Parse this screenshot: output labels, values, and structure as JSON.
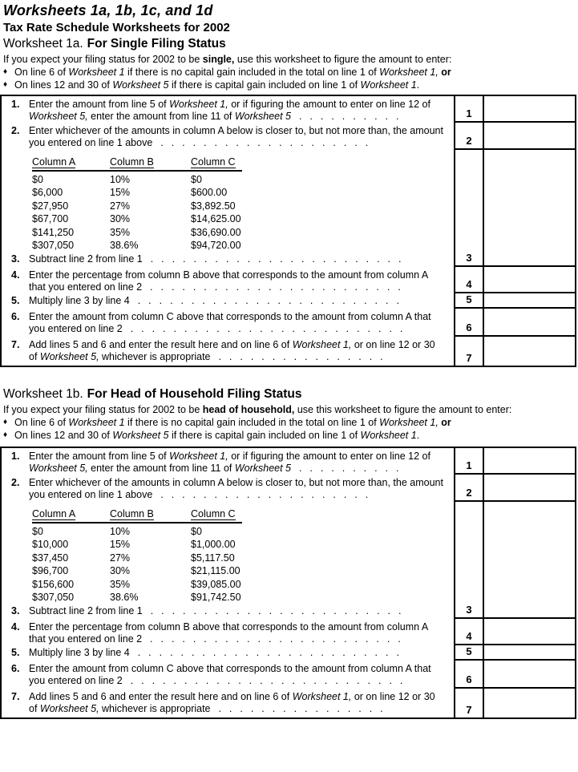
{
  "page": {
    "title": "Worksheets 1a, 1b, 1c, and 1d",
    "subtitle": "Tax Rate Schedule Worksheets for 2002"
  },
  "shared": {
    "bullet_glyph": "♦"
  },
  "worksheets": [
    {
      "label": "Worksheet 1a.",
      "title": "For Single Filing Status",
      "intro": [
        {
          "t": "If you expect your filing status for 2002 to be "
        },
        {
          "t": "single,",
          "b": true
        },
        {
          "t": " use this worksheet to figure the amount to enter:"
        }
      ],
      "bullets": [
        [
          {
            "t": "On line 6 of "
          },
          {
            "t": "Worksheet 1",
            "i": true
          },
          {
            "t": " if there is no capital gain included in the total on line 1 of "
          },
          {
            "t": "Worksheet 1,",
            "i": true
          },
          {
            "t": " "
          },
          {
            "t": "or",
            "b": true
          }
        ],
        [
          {
            "t": "On lines 12 and 30 of "
          },
          {
            "t": "Worksheet 5",
            "i": true
          },
          {
            "t": " if there is capital gain included on line 1 of "
          },
          {
            "t": "Worksheet 1",
            "i": true
          },
          {
            "t": "."
          }
        ]
      ],
      "rate_table": {
        "headers": [
          "Column A",
          "Column B",
          "Column C"
        ],
        "rows": [
          [
            "$0",
            "10%",
            "$0"
          ],
          [
            "$6,000",
            "15%",
            "$600.00"
          ],
          [
            "$27,950",
            "27%",
            "$3,892.50"
          ],
          [
            "$67,700",
            "30%",
            "$14,625.00"
          ],
          [
            "$141,250",
            "35%",
            "$36,690.00"
          ],
          [
            "$307,050",
            "38.6%",
            "$94,720.00"
          ]
        ]
      },
      "lines": [
        {
          "num": "1.",
          "box_num": "1",
          "entry_value": "",
          "runs": [
            {
              "t": "Enter the amount from line 5 of "
            },
            {
              "t": "Worksheet 1,",
              "i": true
            },
            {
              "t": " or if figuring the amount to enter on line 12 of "
            },
            {
              "t": "Worksheet 5,",
              "i": true
            },
            {
              "t": " enter the amount from line 11 of "
            },
            {
              "t": "Worksheet 5",
              "i": true
            }
          ],
          "leader": " . . . . . . . . . ."
        },
        {
          "num": "2.",
          "box_num": "2",
          "entry_value": "",
          "runs": [
            {
              "t": "Enter whichever of the amounts in column A below is closer to, but not more than, the amount you entered on line 1 above"
            }
          ],
          "leader": " . . . . . . . . . . . . . . . . . . . ."
        },
        {
          "num": "3.",
          "box_num": "3",
          "entry_value": "",
          "runs": [
            {
              "t": "Subtract line 2 from line 1"
            }
          ],
          "leader": " . . . . . . . . . . . . . . . . . . . . . . . ."
        },
        {
          "num": "4.",
          "box_num": "4",
          "entry_value": "",
          "runs": [
            {
              "t": "Enter the percentage from column B above that corresponds to the amount from column A that you entered on line 2"
            }
          ],
          "leader": " . . . . . . . . . . . . . . . . . . . . . . . ."
        },
        {
          "num": "5.",
          "box_num": "5",
          "entry_value": "",
          "runs": [
            {
              "t": "Multiply line 3 by line 4"
            }
          ],
          "leader": " . . . . . . . . . . . . . . . . . . . . . . . . ."
        },
        {
          "num": "6.",
          "box_num": "6",
          "entry_value": "",
          "runs": [
            {
              "t": "Enter the amount from column C above that corresponds to the amount from column A that you entered on line 2"
            }
          ],
          "leader": " . . . . . . . . . . . . . . . . . . . . . . . . . ."
        },
        {
          "num": "7.",
          "box_num": "7",
          "entry_value": "",
          "runs": [
            {
              "t": "Add lines 5 and 6 and enter the result here and on line 6 of "
            },
            {
              "t": "Worksheet 1,",
              "i": true
            },
            {
              "t": " or on line 12 or 30 of "
            },
            {
              "t": "Worksheet 5,",
              "i": true
            },
            {
              "t": " whichever is appropriate"
            }
          ],
          "leader": " . . . . . . . . . . . . . . . ."
        }
      ]
    },
    {
      "label": "Worksheet 1b.",
      "title": "For Head of Household Filing Status",
      "intro": [
        {
          "t": "If you expect your filing status for 2002 to be "
        },
        {
          "t": "head of household,",
          "b": true
        },
        {
          "t": " use this worksheet to figure the amount to enter:"
        }
      ],
      "bullets": [
        [
          {
            "t": "On line 6 of "
          },
          {
            "t": "Worksheet 1",
            "i": true
          },
          {
            "t": " if there is no capital gain included in the total on line 1 of "
          },
          {
            "t": "Worksheet 1,",
            "i": true
          },
          {
            "t": " "
          },
          {
            "t": "or",
            "b": true
          }
        ],
        [
          {
            "t": "On lines 12 and 30 of "
          },
          {
            "t": "Worksheet 5",
            "i": true
          },
          {
            "t": " if there is capital gain included on line 1 of "
          },
          {
            "t": "Worksheet 1",
            "i": true
          },
          {
            "t": "."
          }
        ]
      ],
      "rate_table": {
        "headers": [
          "Column A",
          "Column B",
          "Column C"
        ],
        "rows": [
          [
            "$0",
            "10%",
            "$0"
          ],
          [
            "$10,000",
            "15%",
            "$1,000.00"
          ],
          [
            "$37,450",
            "27%",
            "$5,117.50"
          ],
          [
            "$96,700",
            "30%",
            "$21,115.00"
          ],
          [
            "$156,600",
            "35%",
            "$39,085.00"
          ],
          [
            "$307,050",
            "38.6%",
            "$91,742.50"
          ]
        ]
      },
      "lines": [
        {
          "num": "1.",
          "box_num": "1",
          "entry_value": "",
          "runs": [
            {
              "t": "Enter the amount from line 5 of "
            },
            {
              "t": "Worksheet 1,",
              "i": true
            },
            {
              "t": " or if figuring the amount to enter on line 12 of "
            },
            {
              "t": "Worksheet 5,",
              "i": true
            },
            {
              "t": " enter the amount from line 11 of "
            },
            {
              "t": "Worksheet 5",
              "i": true
            }
          ],
          "leader": " . . . . . . . . . ."
        },
        {
          "num": "2.",
          "box_num": "2",
          "entry_value": "",
          "runs": [
            {
              "t": "Enter whichever of the amounts in column A below is closer to, but not more than, the amount you entered on line 1 above"
            }
          ],
          "leader": " . . . . . . . . . . . . . . . . . . . ."
        },
        {
          "num": "3.",
          "box_num": "3",
          "entry_value": "",
          "runs": [
            {
              "t": "Subtract line 2 from line 1"
            }
          ],
          "leader": " . . . . . . . . . . . . . . . . . . . . . . . ."
        },
        {
          "num": "4.",
          "box_num": "4",
          "entry_value": "",
          "runs": [
            {
              "t": "Enter the percentage from column B above that corresponds to the amount from column A that you entered on line 2"
            }
          ],
          "leader": " . . . . . . . . . . . . . . . . . . . . . . . ."
        },
        {
          "num": "5.",
          "box_num": "5",
          "entry_value": "",
          "runs": [
            {
              "t": "Multiply line 3 by line 4"
            }
          ],
          "leader": " . . . . . . . . . . . . . . . . . . . . . . . . ."
        },
        {
          "num": "6.",
          "box_num": "6",
          "entry_value": "",
          "runs": [
            {
              "t": "Enter the amount from column C above that corresponds to the amount from column A that you entered on line 2"
            }
          ],
          "leader": " . . . . . . . . . . . . . . . . . . . . . . . . . ."
        },
        {
          "num": "7.",
          "box_num": "7",
          "entry_value": "",
          "runs": [
            {
              "t": "Add lines 5 and 6 and enter the result here and on line 6 of "
            },
            {
              "t": "Worksheet 1,",
              "i": true
            },
            {
              "t": " or on line 12 or 30 of "
            },
            {
              "t": "Worksheet 5,",
              "i": true
            },
            {
              "t": " whichever is appropriate"
            }
          ],
          "leader": " . . . . . . . . . . . . . . . ."
        }
      ]
    }
  ]
}
